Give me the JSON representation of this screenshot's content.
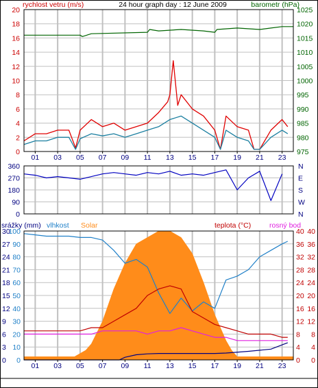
{
  "header": {
    "left_label": "rychlost vetru (m/s)",
    "title": "24 hour graph day : 12 June 2009",
    "right_label": "barometr (hPa)"
  },
  "panel3_labels": {
    "rain": "srážky (mm)",
    "humidity": "vlhkost",
    "solar": "Solar",
    "temp": "teplota (°C)",
    "dew": "rosný bod"
  },
  "colors": {
    "wind_gust": "#e00000",
    "wind_avg": "#1b7fa0",
    "pressure": "#006400",
    "direction": "#0000c0",
    "humidity": "#2080c8",
    "solar": "#ff8c1a",
    "temp": "#c00000",
    "dew": "#e020e0",
    "rain": "#000080",
    "grid": "#c0c0c0",
    "left_axis_text": "#cc0000",
    "right_axis_text": "#006400",
    "blue_text": "#000080"
  },
  "chart_data": [
    {
      "type": "line",
      "name": "wind-pressure",
      "x_ticks": [
        "01",
        "03",
        "05",
        "07",
        "09",
        "11",
        "13",
        "15",
        "17",
        "19",
        "21",
        "23"
      ],
      "xlim": [
        0,
        24
      ],
      "left_axis": {
        "ticks": [
          "0",
          "2",
          "4",
          "6",
          "8",
          "10",
          "12",
          "14",
          "16",
          "18",
          "20"
        ],
        "ylim": [
          0,
          20
        ]
      },
      "right_axis": {
        "ticks": [
          "975",
          "980",
          "985",
          "990",
          "995",
          "1000",
          "1005",
          "1010",
          "1015",
          "1020",
          "1025"
        ],
        "ylim": [
          975,
          1025
        ]
      },
      "series": [
        {
          "key": "gust",
          "axis": "left",
          "x": [
            0,
            1,
            2,
            3,
            4,
            4.6,
            5,
            6,
            7,
            8,
            9,
            10,
            11,
            12,
            12.8,
            13,
            13.3,
            13.7,
            14,
            15,
            16,
            17,
            17.5,
            18,
            19,
            20,
            20.5,
            21,
            22,
            23,
            23.5
          ],
          "y": [
            1.5,
            2.5,
            2.5,
            3,
            3,
            0.5,
            3,
            4.5,
            3.5,
            4,
            3,
            3.5,
            4,
            5.5,
            7,
            8,
            12.8,
            6.5,
            8,
            6,
            5,
            3,
            0.3,
            5,
            3.5,
            3,
            0.3,
            0.3,
            3,
            4.5,
            3.5
          ]
        },
        {
          "key": "avg",
          "axis": "left",
          "x": [
            0,
            1,
            2,
            3,
            4,
            4.6,
            5,
            6,
            7,
            8,
            9,
            10,
            11,
            12,
            13,
            14,
            15,
            16,
            17,
            17.5,
            18,
            19,
            20,
            20.5,
            21,
            22,
            23,
            23.5
          ],
          "y": [
            1,
            1.5,
            1.5,
            2,
            2,
            0.3,
            1.8,
            2.5,
            2.2,
            2.5,
            2,
            2.5,
            3,
            3.5,
            4.5,
            5,
            4,
            3,
            2,
            0.3,
            3,
            2,
            1.5,
            0.3,
            0.3,
            2,
            3,
            2.5
          ]
        },
        {
          "key": "pressure",
          "axis": "right",
          "x": [
            0,
            5,
            5.2,
            6,
            11,
            11.2,
            12,
            14,
            16,
            17,
            17.2,
            19,
            21,
            22,
            23,
            24
          ],
          "y": [
            1016,
            1016,
            1015.5,
            1016.5,
            1017,
            1018,
            1017.5,
            1018,
            1017.5,
            1017,
            1018,
            1018.5,
            1018,
            1018.5,
            1019,
            1019
          ]
        }
      ]
    },
    {
      "type": "line",
      "name": "wind-direction",
      "x_ticks": [
        "01",
        "03",
        "05",
        "07",
        "09",
        "11",
        "13",
        "15",
        "17",
        "19",
        "21",
        "23"
      ],
      "xlim": [
        0,
        24
      ],
      "left_axis": {
        "ticks": [
          "0",
          "90",
          "180",
          "270",
          "360"
        ],
        "ylim": [
          0,
          360
        ]
      },
      "right_axis": {
        "ticks": [
          "N",
          "E",
          "S",
          "W",
          "N"
        ]
      },
      "series": [
        {
          "key": "direction",
          "x": [
            0,
            1,
            2,
            3,
            4,
            5,
            6,
            7,
            8,
            9,
            10,
            11,
            12,
            13,
            14,
            15,
            16,
            17,
            18,
            19,
            20,
            21,
            22,
            23
          ],
          "y": [
            300,
            290,
            270,
            280,
            270,
            260,
            280,
            300,
            310,
            300,
            290,
            310,
            300,
            320,
            290,
            300,
            290,
            310,
            330,
            180,
            270,
            320,
            100,
            300
          ]
        }
      ]
    },
    {
      "type": "line",
      "name": "rain-humidity-solar-temperature",
      "x_ticks": [
        "01",
        "03",
        "05",
        "07",
        "09",
        "11",
        "13",
        "15",
        "17",
        "19",
        "21",
        "23"
      ],
      "xlim": [
        0,
        24
      ],
      "rain_axis": {
        "ticks": [
          "0",
          "3",
          "6",
          "9",
          "12",
          "15",
          "18",
          "21",
          "24",
          "27",
          "30"
        ],
        "ylim": [
          0,
          30
        ]
      },
      "humidity_axis": {
        "ticks": [
          "0",
          "10",
          "20",
          "30",
          "40",
          "50",
          "60",
          "70",
          "80",
          "90",
          "100"
        ],
        "ylim": [
          0,
          100
        ]
      },
      "temp_left_axis": {
        "ticks": [
          "0",
          "4",
          "8",
          "12",
          "16",
          "20",
          "24",
          "28",
          "32",
          "36",
          "40"
        ],
        "ylim": [
          0,
          40
        ]
      },
      "temp_right_axis": {
        "ticks": [
          "0",
          "4",
          "8",
          "12",
          "16",
          "20",
          "24",
          "28",
          "32",
          "36",
          "40"
        ],
        "ylim": [
          0,
          40
        ]
      },
      "series": [
        {
          "key": "humidity",
          "x": [
            0,
            1,
            2,
            3,
            4,
            5,
            6,
            7,
            8,
            9,
            10,
            11,
            12,
            13,
            14,
            15,
            16,
            17,
            18,
            19,
            20,
            21,
            22,
            23,
            23.5
          ],
          "y": [
            98,
            97,
            96,
            96,
            96,
            95,
            95,
            93,
            85,
            75,
            78,
            72,
            52,
            36,
            48,
            38,
            45,
            40,
            62,
            65,
            70,
            80,
            85,
            90,
            92
          ]
        },
        {
          "key": "solar",
          "x": [
            0,
            4.5,
            5,
            5.5,
            6,
            7,
            8,
            9,
            10,
            11,
            12,
            13,
            14,
            15,
            16,
            17,
            18,
            18.5,
            19,
            20,
            21,
            22,
            23,
            24
          ],
          "y": [
            1,
            1,
            2,
            3,
            5,
            12,
            22,
            30,
            36,
            38,
            40,
            40,
            38,
            33,
            24,
            14,
            6,
            3,
            1,
            1,
            1,
            1,
            1,
            1
          ]
        },
        {
          "key": "temp",
          "x": [
            0,
            1,
            2,
            3,
            4,
            5,
            6,
            7,
            8,
            9,
            10,
            11,
            12,
            13,
            14,
            15,
            16,
            17,
            18,
            19,
            20,
            21,
            22,
            23,
            23.5
          ],
          "y": [
            9,
            9,
            9,
            9,
            9,
            9,
            10,
            10,
            12,
            14,
            16,
            20,
            22,
            23,
            22,
            15,
            13,
            11,
            10,
            9,
            8,
            8,
            8,
            7,
            7
          ]
        },
        {
          "key": "dew",
          "x": [
            0,
            1,
            2,
            3,
            4,
            5,
            6,
            7,
            8,
            9,
            10,
            11,
            12,
            13,
            14,
            15,
            16,
            17,
            18,
            19,
            20,
            21,
            22,
            23,
            23.5
          ],
          "y": [
            8,
            8,
            8,
            8,
            8,
            8,
            8,
            9,
            9,
            9,
            9,
            8,
            9,
            9,
            10,
            9,
            8,
            7,
            7,
            6,
            6,
            6,
            6,
            6,
            6
          ]
        },
        {
          "key": "rain",
          "x": [
            0,
            6,
            8.5,
            9,
            10,
            11,
            12,
            13,
            14,
            15,
            16,
            17,
            18,
            20,
            22,
            23.5
          ],
          "y": [
            0,
            0,
            0,
            0.6,
            1.2,
            1.4,
            1.5,
            1.5,
            1.5,
            1.5,
            1.5,
            1.5,
            1.6,
            2,
            2.5,
            4
          ]
        }
      ]
    }
  ]
}
